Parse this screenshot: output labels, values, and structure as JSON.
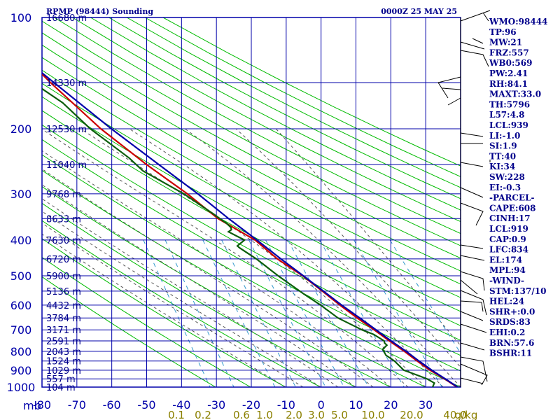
{
  "header": {
    "title": "RPMP (98444) Sounding",
    "time": "0000Z 25 MAY 25"
  },
  "chart_data": {
    "type": "skew-t",
    "pressure_levels": [
      100,
      200,
      300,
      400,
      500,
      600,
      700,
      800,
      900,
      1000
    ],
    "pressure_unit": "mb",
    "temperature_ticks": [
      -80,
      -70,
      -60,
      -50,
      -40,
      -30,
      -20,
      -10,
      0,
      10,
      20,
      30
    ],
    "height_labels": [
      {
        "p": 100,
        "label": "16680 m"
      },
      {
        "p": 150,
        "label": "14330 m"
      },
      {
        "p": 200,
        "label": "12530 m"
      },
      {
        "p": 250,
        "label": "11040 m"
      },
      {
        "p": 300,
        "label": "9768 m"
      },
      {
        "p": 350,
        "label": "8633 m"
      },
      {
        "p": 400,
        "label": "7630 m"
      },
      {
        "p": 450,
        "label": "6720 m"
      },
      {
        "p": 500,
        "label": "5900 m"
      },
      {
        "p": 550,
        "label": "5136 m"
      },
      {
        "p": 600,
        "label": "4432 m"
      },
      {
        "p": 650,
        "label": "3784 m"
      },
      {
        "p": 700,
        "label": "3171 m"
      },
      {
        "p": 750,
        "label": "2591 m"
      },
      {
        "p": 800,
        "label": "2043 m"
      },
      {
        "p": 850,
        "label": "1524 m"
      },
      {
        "p": 900,
        "label": "1029 m"
      },
      {
        "p": 950,
        "label": "557 m"
      },
      {
        "p": 1000,
        "label": "104 m"
      }
    ],
    "mixing_ratio_labels": [
      "0.1",
      "0.2",
      "0.6",
      "1.0",
      "2.0",
      "3.0",
      "5.0",
      "10.0",
      "20.0",
      "40.0"
    ],
    "mixing_ratio_unit": "g/kg",
    "series": [
      {
        "color": "#cc0000",
        "points": [
          [
            1000,
            29
          ],
          [
            950,
            26
          ],
          [
            900,
            22.5
          ],
          [
            850,
            19.5
          ],
          [
            800,
            16.5
          ],
          [
            750,
            13
          ],
          [
            700,
            9.5
          ],
          [
            650,
            5.5
          ],
          [
            600,
            1.5
          ],
          [
            550,
            -2.5
          ],
          [
            500,
            -7
          ],
          [
            450,
            -13
          ],
          [
            400,
            -18
          ],
          [
            350,
            -27
          ],
          [
            300,
            -34
          ],
          [
            250,
            -43.5
          ],
          [
            200,
            -54
          ],
          [
            150,
            -65
          ],
          [
            120,
            -72.5
          ],
          [
            100,
            -79.5
          ]
        ]
      },
      {
        "color": "#0000aa",
        "points": [
          [
            1000,
            29.2
          ],
          [
            950,
            26.2
          ],
          [
            900,
            23
          ],
          [
            850,
            20
          ],
          [
            800,
            17
          ],
          [
            750,
            13.5
          ],
          [
            700,
            10
          ],
          [
            650,
            6.2
          ],
          [
            600,
            2
          ],
          [
            550,
            -2.2
          ],
          [
            500,
            -6.8
          ],
          [
            450,
            -12
          ],
          [
            400,
            -17.5
          ],
          [
            350,
            -24
          ],
          [
            300,
            -31
          ],
          [
            250,
            -40
          ],
          [
            200,
            -51
          ],
          [
            150,
            -64
          ],
          [
            120,
            -74
          ],
          [
            100,
            -82
          ]
        ]
      },
      {
        "color": "#0b5e0b",
        "points": [
          [
            1000,
            22
          ],
          [
            975,
            22.8
          ],
          [
            950,
            21
          ],
          [
            920,
            17.5
          ],
          [
            900,
            15
          ],
          [
            850,
            13
          ],
          [
            820,
            11
          ],
          [
            790,
            10.5
          ],
          [
            770,
            12
          ],
          [
            760,
            11.5
          ],
          [
            750,
            11.5
          ],
          [
            720,
            9
          ],
          [
            700,
            6
          ],
          [
            650,
            0
          ],
          [
            600,
            -4
          ],
          [
            560,
            -8
          ],
          [
            500,
            -14
          ],
          [
            450,
            -19
          ],
          [
            420,
            -23
          ],
          [
            415,
            -23.5
          ],
          [
            400,
            -21
          ],
          [
            390,
            -23
          ],
          [
            380,
            -25
          ],
          [
            375,
            -24
          ],
          [
            370,
            -24
          ],
          [
            360,
            -25
          ],
          [
            350,
            -26.5
          ],
          [
            340,
            -28
          ],
          [
            300,
            -35
          ],
          [
            260,
            -45
          ],
          [
            240,
            -48
          ],
          [
            200,
            -57
          ],
          [
            170,
            -63
          ],
          [
            150,
            -70
          ],
          [
            120,
            -74
          ],
          [
            100,
            -82
          ]
        ]
      }
    ],
    "wind_barbs_present": true
  },
  "indices": [
    "WMO:98444",
    "TP:96",
    "MW:21",
    "FRZ:557",
    "WB0:569",
    "PW:2.41",
    "RH:84.1",
    "MAXT:33.0",
    "TH:5796",
    "L57:4.8",
    "LCL:939",
    "LI:-1.0",
    "SI:1.9",
    "TT:40",
    "KI:34",
    "SW:228",
    "EI:-0.3",
    "-PARCEL-",
    "CAPE:608",
    "CINH:17",
    "LCL:919",
    "CAP:0.9",
    "LFC:834",
    "EL:174",
    "MPL:94",
    "-WIND-",
    "STM:137/10",
    "HEL:24",
    "SHR+:0.0",
    "SRDS:83",
    "EHI:0.2",
    "BRN:57.6",
    "BSHR:11"
  ],
  "colors": {
    "frame": "#0000aa",
    "dry_adiabat": "#00bb00",
    "moist_adiabat": "#555555",
    "mixing_ratio": "#3399cc",
    "temperature": "#cc0000",
    "parcel": "#0000aa",
    "dewpoint": "#0b5e0b",
    "text": "#00008b"
  }
}
